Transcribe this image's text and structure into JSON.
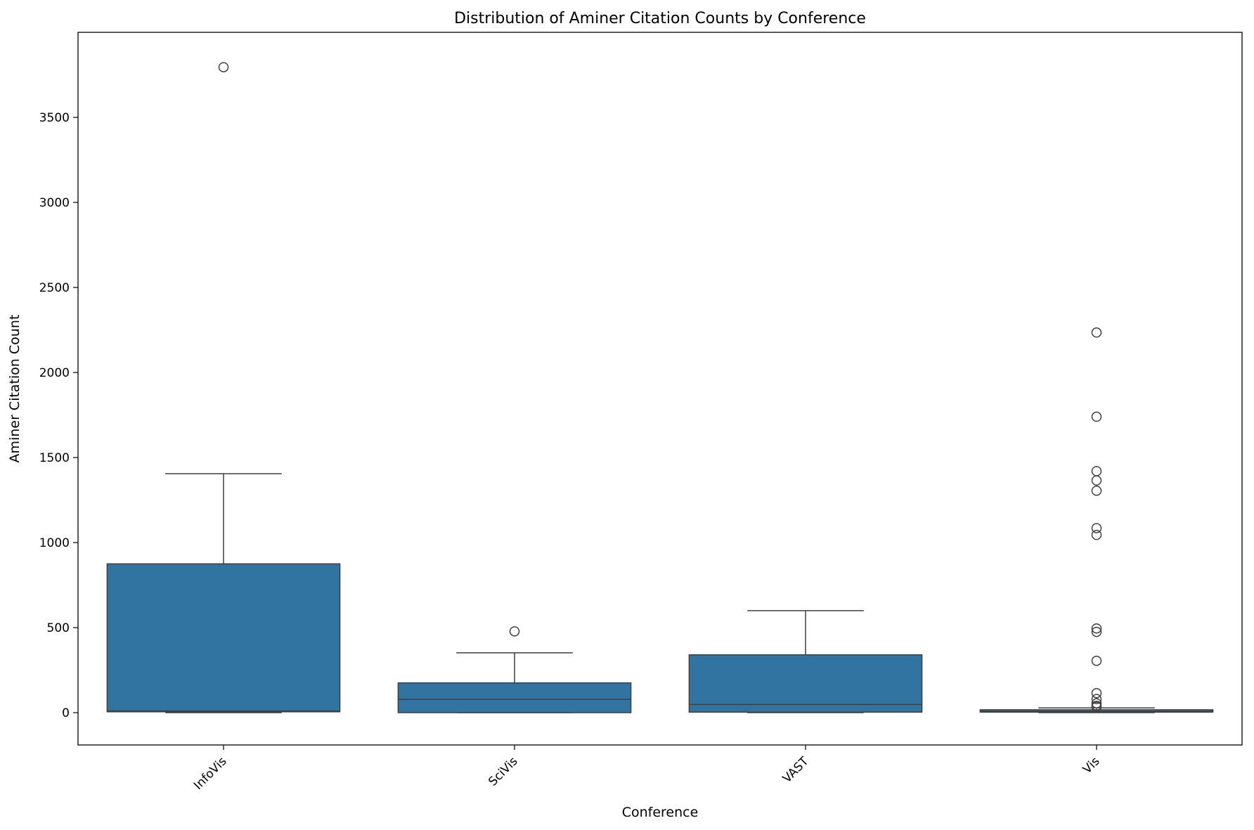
{
  "chart_data": {
    "type": "box",
    "title": "Distribution of Aminer Citation Counts by Conference",
    "xlabel": "Conference",
    "ylabel": "Aminer Citation Count",
    "categories": [
      "InfoVis",
      "SciVis",
      "VAST",
      "Vis"
    ],
    "ylim": [
      -190,
      4000
    ],
    "yticks": [
      0,
      500,
      1000,
      1500,
      2000,
      2500,
      3000,
      3500
    ],
    "grid": false,
    "legend": "none",
    "box_color": "#3274a1",
    "boxes": [
      {
        "category": "InfoVis",
        "whisker_low": 0,
        "q1": 5,
        "median": 10,
        "q3": 875,
        "whisker_high": 1405,
        "outliers": [
          3795
        ]
      },
      {
        "category": "SciVis",
        "whisker_low": 0,
        "q1": 0,
        "median": 78,
        "q3": 175,
        "whisker_high": 352,
        "outliers": [
          478
        ]
      },
      {
        "category": "VAST",
        "whisker_low": 0,
        "q1": 3,
        "median": 48,
        "q3": 340,
        "whisker_high": 600,
        "outliers": []
      },
      {
        "category": "Vis",
        "whisker_low": 0,
        "q1": 3,
        "median": 8,
        "q3": 17,
        "whisker_high": 28,
        "outliers": [
          2235,
          1740,
          1420,
          1365,
          1305,
          1085,
          1045,
          495,
          475,
          305,
          115,
          80,
          55,
          40,
          35
        ]
      }
    ]
  }
}
